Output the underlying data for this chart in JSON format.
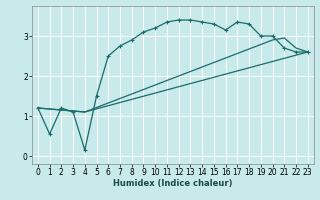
{
  "xlabel": "Humidex (Indice chaleur)",
  "bg_color": "#c8eaea",
  "grid_color": "#ffffff",
  "line_color": "#1a6b6b",
  "xlim": [
    -0.5,
    23.5
  ],
  "ylim": [
    -0.2,
    3.75
  ],
  "xticks": [
    0,
    1,
    2,
    3,
    4,
    5,
    6,
    7,
    8,
    9,
    10,
    11,
    12,
    13,
    14,
    15,
    16,
    17,
    18,
    19,
    20,
    21,
    22,
    23
  ],
  "yticks": [
    0,
    1,
    2,
    3
  ],
  "curve1_x": [
    0,
    1,
    2,
    3,
    4,
    5,
    6,
    7,
    8,
    9,
    10,
    11,
    12,
    13,
    14,
    15,
    16,
    17,
    18,
    19,
    20,
    21,
    22,
    23
  ],
  "curve1_y": [
    1.2,
    0.55,
    1.2,
    1.1,
    0.15,
    1.5,
    2.5,
    2.75,
    2.9,
    3.1,
    3.2,
    3.35,
    3.4,
    3.4,
    3.35,
    3.3,
    3.15,
    3.35,
    3.3,
    3.0,
    3.0,
    2.7,
    2.6,
    2.6
  ],
  "curve2_x": [
    0,
    4,
    23
  ],
  "curve2_y": [
    1.2,
    1.1,
    2.6
  ],
  "curve3_x": [
    0,
    4,
    20,
    21,
    22,
    23
  ],
  "curve3_y": [
    1.2,
    1.1,
    2.9,
    2.95,
    2.7,
    2.6
  ]
}
